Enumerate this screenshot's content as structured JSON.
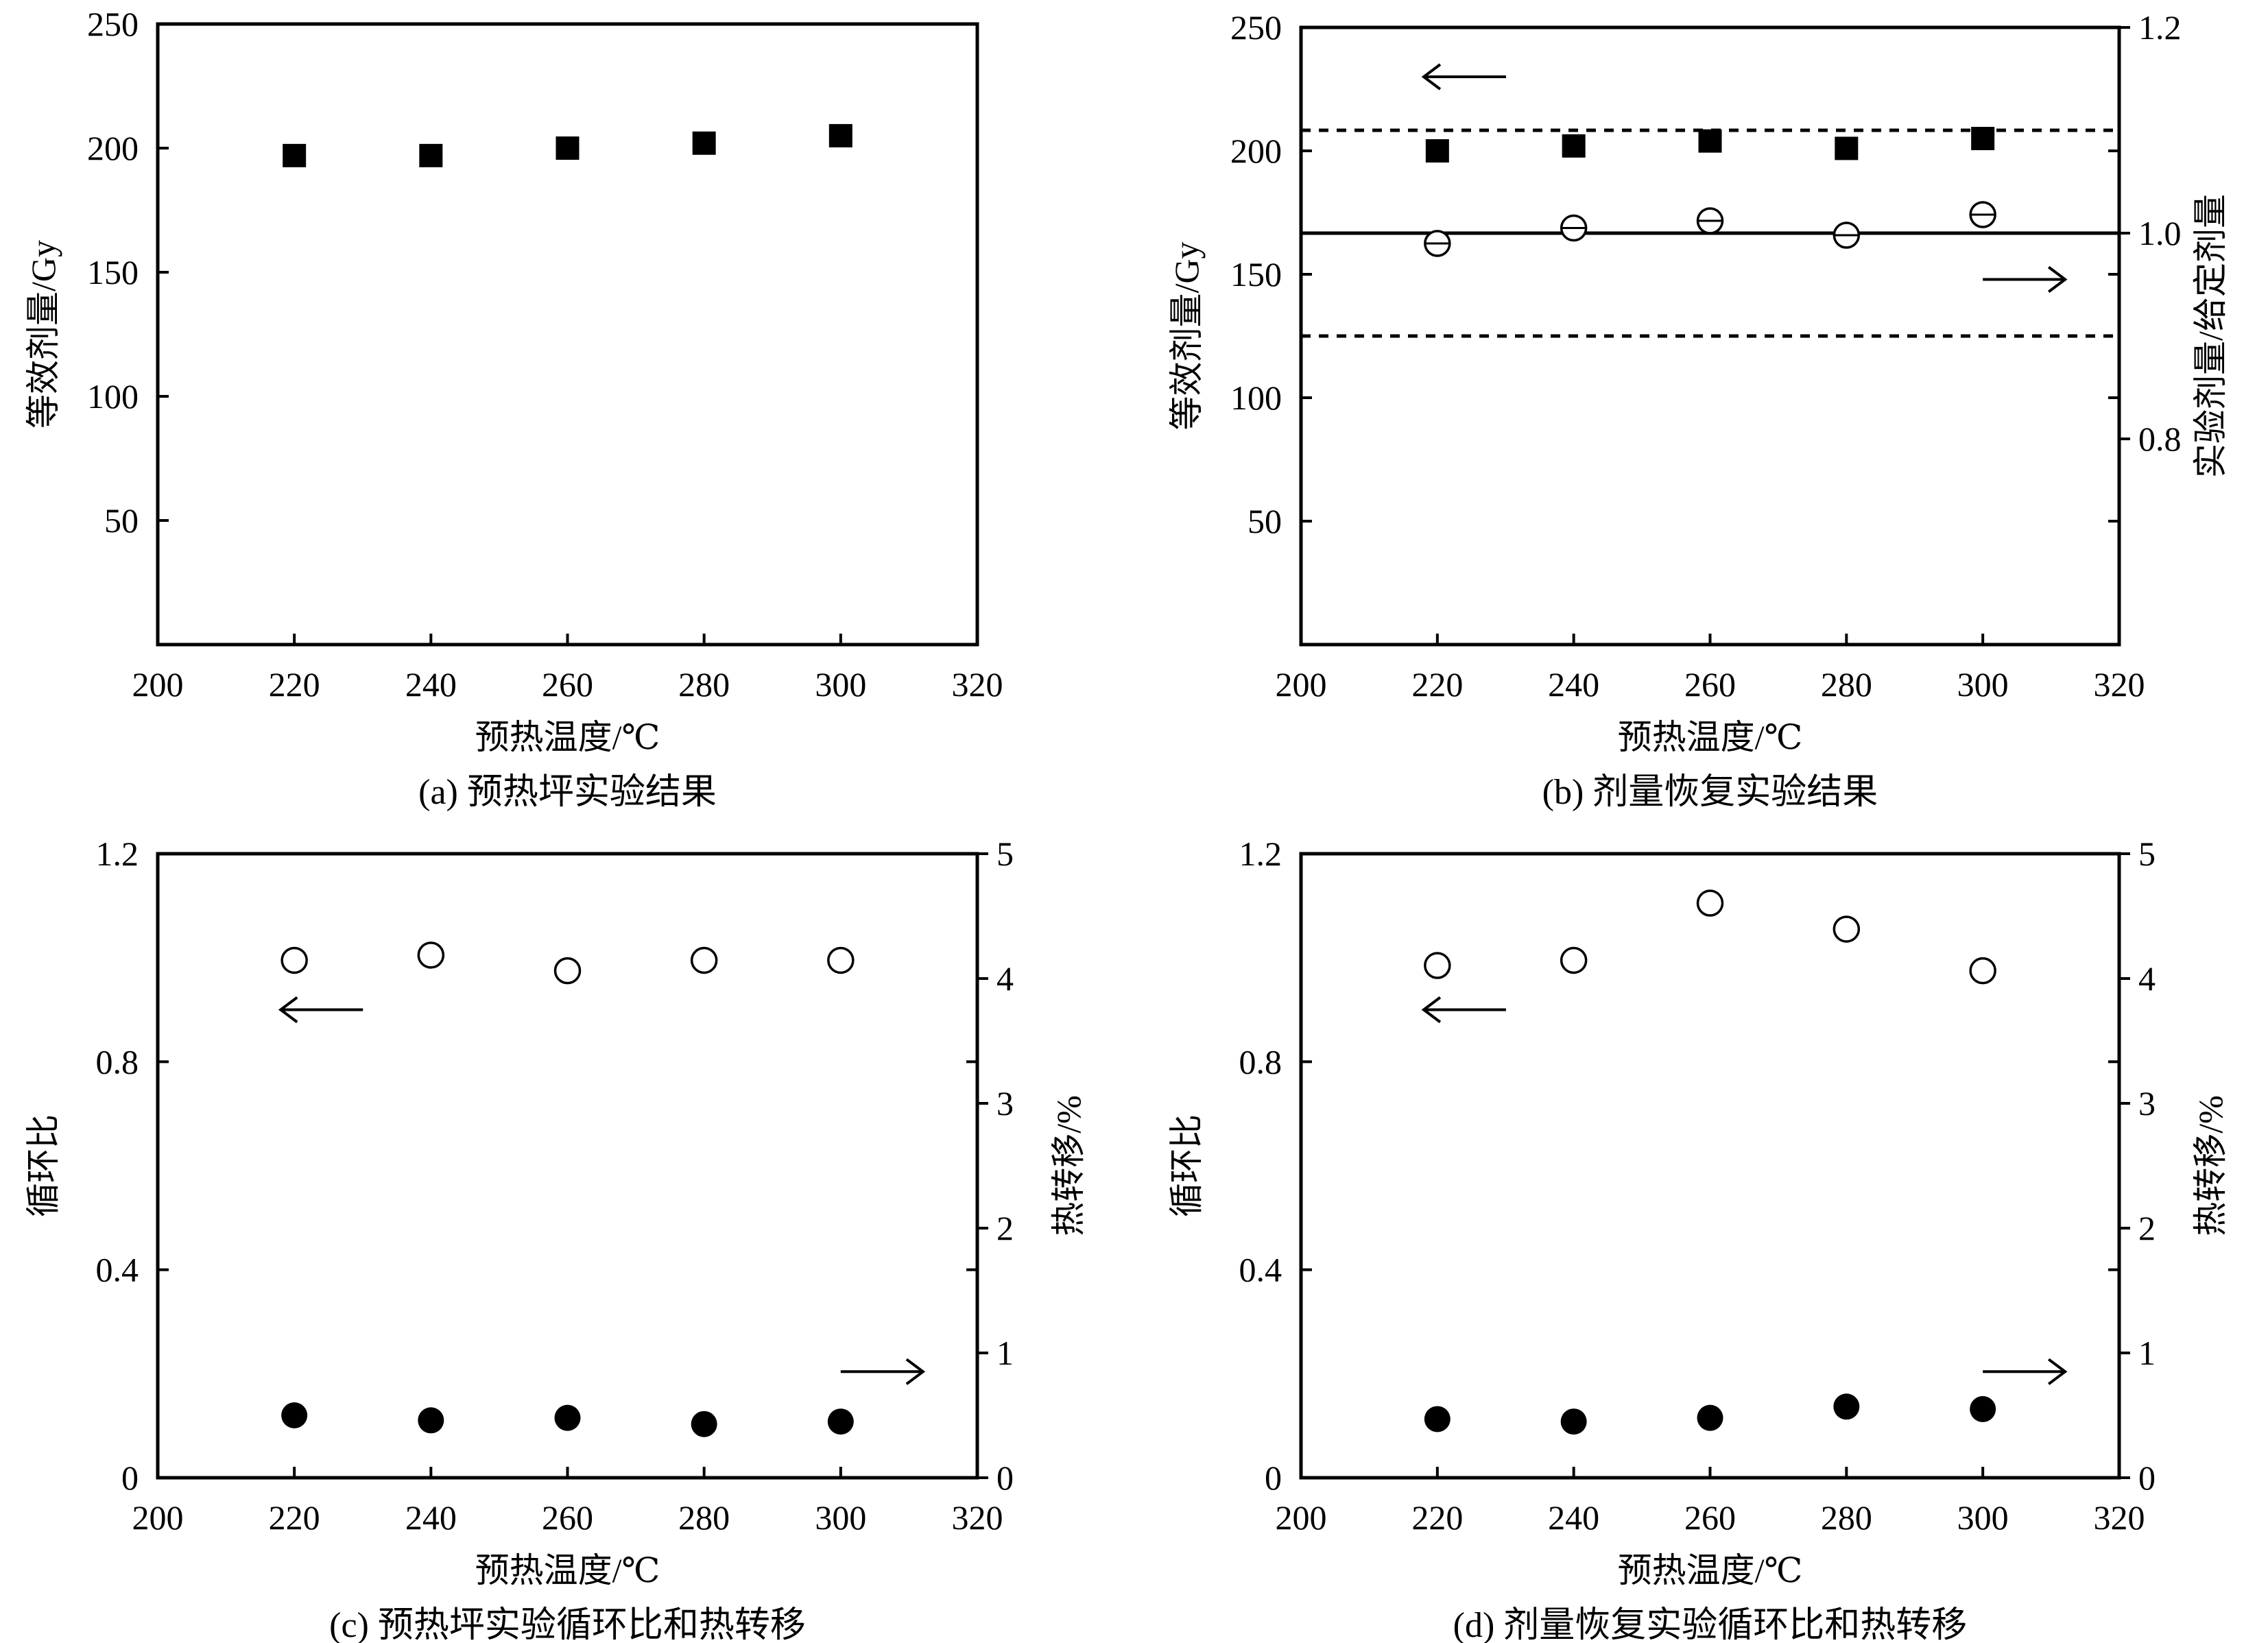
{
  "chart_data": [
    {
      "id": "a",
      "type": "scatter",
      "caption": "(a) 预热坪实验结果",
      "xlabel": "预热温度/℃",
      "ylabel": "等效剂量/Gy",
      "xlim": [
        200,
        320
      ],
      "ylim": [
        0,
        250
      ],
      "xticks": [
        200,
        220,
        240,
        260,
        280,
        300,
        320
      ],
      "yticks": [
        50,
        100,
        150,
        200,
        250
      ],
      "series": [
        {
          "axis": "left",
          "marker": "square-filled",
          "x": [
            220,
            240,
            260,
            280,
            300
          ],
          "y": [
            197,
            197,
            200,
            202,
            205
          ]
        }
      ]
    },
    {
      "id": "b",
      "type": "scatter",
      "caption": "(b) 剂量恢复实验结果",
      "xlabel": "预热温度/℃",
      "ylabel": "等效剂量/Gy",
      "y2label": "实验剂量/给定剂量",
      "xlim": [
        200,
        320
      ],
      "ylim": [
        0,
        250
      ],
      "y2lim": [
        0.6,
        1.2
      ],
      "xticks": [
        200,
        220,
        240,
        260,
        280,
        300,
        320
      ],
      "yticks": [
        50,
        100,
        150,
        200,
        250
      ],
      "y2ticks": [
        "0.8",
        "1.0",
        "1.2"
      ],
      "series": [
        {
          "axis": "left",
          "marker": "square-filled",
          "x": [
            220,
            240,
            260,
            280,
            300
          ],
          "y": [
            200,
            202,
            204,
            201,
            205
          ]
        },
        {
          "axis": "right",
          "marker": "circle-open",
          "x": [
            220,
            240,
            260,
            280,
            300
          ],
          "y": [
            0.99,
            1.005,
            1.012,
            0.998,
            1.018
          ]
        }
      ],
      "reference_lines": [
        {
          "axis": "right",
          "y": 1.0,
          "style": "solid"
        },
        {
          "axis": "right",
          "y": 1.1,
          "style": "dashed"
        },
        {
          "axis": "right",
          "y": 0.9,
          "style": "dashed"
        }
      ],
      "arrows": [
        {
          "direction": "left",
          "axis": "left",
          "x": 218,
          "y": 230
        },
        {
          "direction": "right",
          "axis": "right",
          "x": 300,
          "y": 0.955
        }
      ]
    },
    {
      "id": "c",
      "type": "scatter",
      "caption": "(c) 预热坪实验循环比和热转移",
      "xlabel": "预热温度/℃",
      "ylabel": "循环比",
      "y2label": "热转移/%",
      "xlim": [
        200,
        320
      ],
      "ylim": [
        0,
        1.2
      ],
      "y2lim": [
        0,
        5
      ],
      "xticks": [
        200,
        220,
        240,
        260,
        280,
        300,
        320
      ],
      "yticks": [
        "0",
        "0.4",
        "0.8",
        "1.2"
      ],
      "y2ticks": [
        0,
        1,
        2,
        3,
        4,
        5
      ],
      "series": [
        {
          "axis": "left",
          "marker": "circle-open",
          "x": [
            220,
            240,
            260,
            280,
            300
          ],
          "y": [
            0.995,
            1.005,
            0.975,
            0.995,
            0.995
          ]
        },
        {
          "axis": "right",
          "marker": "circle-filled",
          "x": [
            220,
            240,
            260,
            280,
            300
          ],
          "y": [
            0.5,
            0.46,
            0.48,
            0.43,
            0.45
          ]
        }
      ],
      "arrows": [
        {
          "direction": "left",
          "axis": "left",
          "x": 218,
          "y": 0.9
        },
        {
          "direction": "right",
          "axis": "right",
          "x": 300,
          "y": 0.85
        }
      ]
    },
    {
      "id": "d",
      "type": "scatter",
      "caption": "(d) 剂量恢复实验循环比和热转移",
      "xlabel": "预热温度/℃",
      "ylabel": "循环比",
      "y2label": "热转移/%",
      "xlim": [
        200,
        320
      ],
      "ylim": [
        0,
        1.2
      ],
      "y2lim": [
        0,
        5
      ],
      "xticks": [
        200,
        220,
        240,
        260,
        280,
        300,
        320
      ],
      "yticks": [
        "0",
        "0.4",
        "0.8",
        "1.2"
      ],
      "y2ticks": [
        0,
        1,
        2,
        3,
        4,
        5
      ],
      "series": [
        {
          "axis": "left",
          "marker": "circle-open",
          "x": [
            220,
            240,
            260,
            280,
            300
          ],
          "y": [
            0.985,
            0.995,
            1.105,
            1.055,
            0.975
          ]
        },
        {
          "axis": "right",
          "marker": "circle-filled",
          "x": [
            220,
            240,
            260,
            280,
            300
          ],
          "y": [
            0.47,
            0.45,
            0.48,
            0.57,
            0.55
          ]
        }
      ],
      "arrows": [
        {
          "direction": "left",
          "axis": "left",
          "x": 218,
          "y": 0.9
        },
        {
          "direction": "right",
          "axis": "right",
          "x": 300,
          "y": 0.85
        }
      ]
    }
  ]
}
